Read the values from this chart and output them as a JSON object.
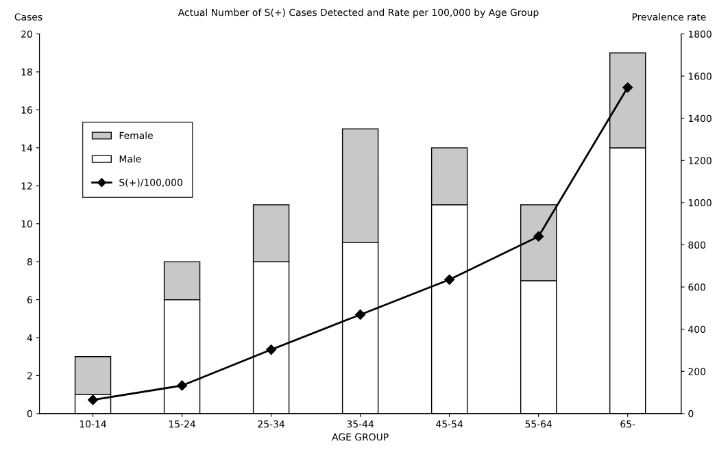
{
  "chart_data": {
    "type": "bar",
    "title": "Actual Number of S(+) Cases Detected and Rate per 100,000 by Age Group",
    "xlabel": "AGE GROUP",
    "ylabel": "Cases",
    "y2label": "Prevalence rate",
    "categories": [
      "10-14",
      "15-24",
      "25-34",
      "35-44",
      "45-54",
      "55-64",
      "65-"
    ],
    "stacked": true,
    "series": [
      {
        "name": "Male",
        "color": "#ffffff",
        "values": [
          1,
          6,
          8,
          9,
          11,
          7,
          14
        ]
      },
      {
        "name": "Female",
        "color": "#c8c8c8",
        "values": [
          2,
          2,
          3,
          6,
          3,
          4,
          5
        ]
      },
      {
        "name": "S(+)/100,000",
        "type": "line",
        "axis": "y2",
        "color": "#000000",
        "marker": "diamond",
        "values": [
          65,
          133,
          303,
          469,
          635,
          840,
          1546
        ]
      }
    ],
    "ylim": [
      0,
      20
    ],
    "yticks": [
      0,
      2,
      4,
      6,
      8,
      10,
      12,
      14,
      16,
      18,
      20
    ],
    "y2lim": [
      0,
      1800
    ],
    "y2ticks": [
      0,
      200,
      400,
      600,
      800,
      1000,
      1200,
      1400,
      1600,
      1800
    ],
    "grid": false,
    "legend": "top left"
  }
}
